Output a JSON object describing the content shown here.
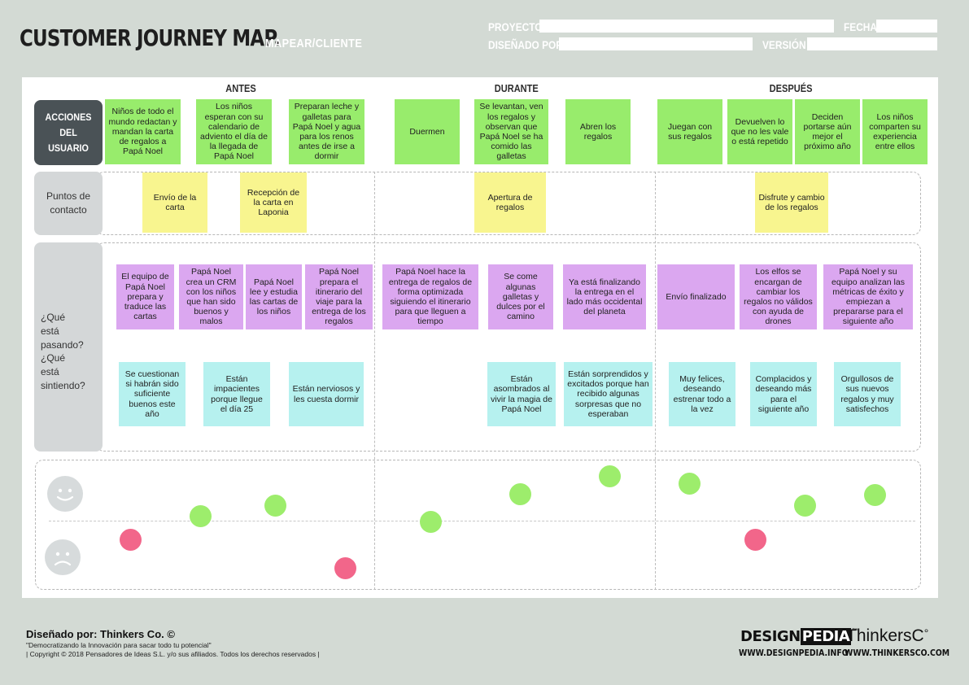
{
  "header": {
    "title": "CUSTOMER JOURNEY MAP.",
    "subtitle": "MAPEAR/CLIENTE",
    "fields": {
      "proyecto": "PROYECTO",
      "fecha": "FECHA",
      "disenado_por": "DISEÑADO POR",
      "version": "VERSIÓN"
    }
  },
  "phases": [
    "ANTES",
    "DURANTE",
    "DESPUÉS"
  ],
  "rows": {
    "acciones": "Acciones del usuario",
    "puntos": "Puntos de contacto",
    "pasando": "¿Qué está pasando?",
    "sintiendo": "¿Qué está sintiendo?"
  },
  "acciones": [
    "Niños de todo el mundo redactan y mandan la carta de regalos a Papá Noel",
    "Los niños esperan con su calendario de adviento el día de la llegada de Papá Noel",
    "Preparan leche y galletas para Papá Noel y agua para los renos antes de irse a dormir",
    "Duermen",
    "Se levantan, ven los regalos y observan que Papá Noel se ha comido las galletas",
    "Abren los regalos",
    "Juegan con sus regalos",
    "Devuelven lo que no les vale o está repetido",
    "Deciden portarse aún mejor el próximo año",
    "Los niños comparten su experiencia entre ellos"
  ],
  "puntos": [
    "Envío de la carta",
    "Recepción de la carta en Laponia",
    "Apertura de regalos",
    "Disfrute y cambio de los regalos"
  ],
  "pasando": [
    "El equipo de Papá Noel prepara y traduce las cartas",
    "Papá Noel crea un CRM con los niños que han sido buenos y malos",
    "Papá Noel lee y estudia las cartas de los niños",
    "Papá Noel prepara el itinerario del viaje para la entrega de los regalos",
    "Papá Noel hace la entrega de regalos de forma optimizada siguiendo el itinerario para que lleguen a tiempo",
    "Se come algunas galletas y dulces por el camino",
    "Ya está finalizando la entrega en el lado más occidental del planeta",
    "Envío finalizado",
    "Los elfos se encargan de cambiar los regalos no válidos con ayuda de drones",
    "Papá Noel y su equipo analizan las métricas de éxito y empiezan a prepararse para el siguiente año"
  ],
  "sintiendo": [
    "Se cuestionan si habrán sido suficiente buenos este año",
    "Están impacientes porque llegue el día 25",
    "Están nerviosos y les cuesta dormir",
    "Están asombrados al vivir la magia de Papá Noel",
    "Están sorprendidos y excitados porque han recibido algunas sorpresas que no esperaban",
    "Muy felices, deseando estrenar todo a la vez",
    "Complacidos y deseando más para el siguiente año",
    "Orgullosos de sus nuevos regalos y muy satisfechos"
  ],
  "emotions": [
    {
      "mood": "negative"
    },
    {
      "mood": "positive"
    },
    {
      "mood": "positive"
    },
    {
      "mood": "negative"
    },
    {
      "mood": "positive"
    },
    {
      "mood": "positive"
    },
    {
      "mood": "positive"
    },
    {
      "mood": "positive"
    },
    {
      "mood": "negative"
    },
    {
      "mood": "positive"
    },
    {
      "mood": "positive"
    }
  ],
  "colors": {
    "acciones": "#98ec6c",
    "puntos": "#f8f58f",
    "pasando": "#dba7f0",
    "sintiendo": "#b6f1ef",
    "positive": "#9ded6c",
    "negative": "#f2668a"
  },
  "footer": {
    "designed": "Diseñado por: Thinkers Co. ©",
    "tagline": "\"Democratizando la Innovación para sacar todo tu potencial\"",
    "copyright": "| Copyright © 2018 Pensadores de Ideas S.L. y/o sus afiliados. Todos los derechos reservados |",
    "logo1_a": "DESIGN",
    "logo1_b": "PEDIA",
    "logo1_tm": "™",
    "logo2": "ThinkersC",
    "logo2_mark": "°",
    "url1": "WWW.DESIGNPEDIA.INFO",
    "url2": "WWW.THINKERSCO.COM"
  }
}
